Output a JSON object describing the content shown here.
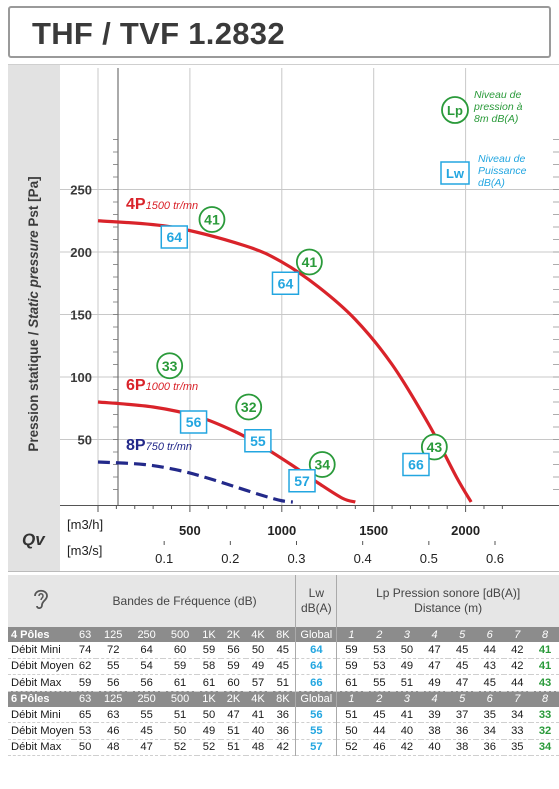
{
  "title": "THF / TVF 1.2832",
  "chart_data": {
    "type": "line",
    "ylabel_normal": "Pression statique / ",
    "ylabel_italic": "Static pressure",
    "ylabel_tail": " Pst [Pa]",
    "y_ticks": [
      "250",
      "200",
      "150",
      "100",
      "50"
    ],
    "x_ticks_m3h": [
      "500",
      "1000",
      "1500",
      "2000"
    ],
    "x_ticks_m3s": [
      "0.1",
      "0.2",
      "0.3",
      "0.4",
      "0.5",
      "0.6"
    ],
    "x_unit_m3h": "[m3/h]",
    "x_unit_m3s": "[m3/s]",
    "x_label": "Qv",
    "xlim": [
      0,
      2250
    ],
    "ylim": [
      0,
      295
    ],
    "series": [
      {
        "name": "4P",
        "speed": "1500 tr/mn",
        "color": "#d9232a",
        "dashed": false,
        "x": [
          0,
          400,
          800,
          1000,
          1200,
          1400,
          1600,
          1800,
          1950,
          2030
        ],
        "y": [
          225,
          220,
          205,
          192,
          172,
          146,
          110,
          62,
          20,
          0
        ]
      },
      {
        "name": "6P",
        "speed": "1000 tr/mn",
        "color": "#d9232a",
        "dashed": false,
        "x": [
          0,
          300,
          550,
          750,
          900,
          1050,
          1200,
          1330,
          1400
        ],
        "y": [
          80,
          76,
          68,
          56,
          44,
          30,
          15,
          3,
          0
        ]
      },
      {
        "name": "8P",
        "speed": "750 tr/mn",
        "color": "#23298a",
        "dashed": true,
        "x": [
          0,
          250,
          450,
          600,
          750,
          900,
          1000,
          1060
        ],
        "y": [
          32,
          30,
          25,
          19,
          12,
          5,
          1,
          0
        ]
      }
    ],
    "lp_labels": [
      {
        "value": "41",
        "x": 620,
        "y": 226
      },
      {
        "value": "41",
        "x": 1150,
        "y": 192
      },
      {
        "value": "33",
        "x": 390,
        "y": 109
      },
      {
        "value": "32",
        "x": 820,
        "y": 76
      },
      {
        "value": "43",
        "x": 1830,
        "y": 44
      },
      {
        "value": "34",
        "x": 1220,
        "y": 30
      }
    ],
    "lw_labels": [
      {
        "value": "64",
        "x": 415,
        "y": 212
      },
      {
        "value": "64",
        "x": 1020,
        "y": 175
      },
      {
        "value": "56",
        "x": 520,
        "y": 64
      },
      {
        "value": "55",
        "x": 870,
        "y": 49
      },
      {
        "value": "66",
        "x": 1730,
        "y": 30
      },
      {
        "value": "57",
        "x": 1110,
        "y": 17
      }
    ],
    "legend": {
      "lp_symbol": "Lp",
      "lp_text": [
        "Niveau de",
        "pression à",
        "8m dB(A)"
      ],
      "lw_symbol": "Lw",
      "lw_text": [
        "Niveau de",
        "Puissance",
        "dB(A)"
      ]
    }
  },
  "table": {
    "header": {
      "bandes": "Bandes de Fréquence (dB)",
      "lw": [
        "Lw",
        "dB(A)"
      ],
      "lp": [
        "Lp Pression sonore [dB(A)]",
        "Distance (m)"
      ]
    },
    "sections": [
      {
        "label": "4 Pôles",
        "cols": [
          "63",
          "125",
          "250",
          "500",
          "1K",
          "2K",
          "4K",
          "8K",
          "Global",
          "1",
          "2",
          "3",
          "4",
          "5",
          "6",
          "7",
          "8"
        ],
        "rows": [
          {
            "label": "Débit Mini",
            "bands": [
              "74",
              "72",
              "64",
              "60",
              "59",
              "56",
              "50",
              "45"
            ],
            "global": "64",
            "lp": [
              "59",
              "53",
              "50",
              "47",
              "45",
              "44",
              "42"
            ],
            "lp8": "41"
          },
          {
            "label": "Débit Moyen",
            "bands": [
              "62",
              "55",
              "54",
              "59",
              "58",
              "59",
              "49",
              "45"
            ],
            "global": "64",
            "lp": [
              "59",
              "53",
              "49",
              "47",
              "45",
              "43",
              "42"
            ],
            "lp8": "41"
          },
          {
            "label": "Débit Max",
            "bands": [
              "59",
              "56",
              "56",
              "61",
              "61",
              "60",
              "57",
              "51"
            ],
            "global": "66",
            "lp": [
              "61",
              "55",
              "51",
              "49",
              "47",
              "45",
              "44"
            ],
            "lp8": "43"
          }
        ]
      },
      {
        "label": "6 Pôles",
        "cols": [
          "63",
          "125",
          "250",
          "500",
          "1K",
          "2K",
          "4K",
          "8K",
          "Global",
          "1",
          "2",
          "3",
          "4",
          "5",
          "6",
          "7",
          "8"
        ],
        "rows": [
          {
            "label": "Débit Mini",
            "bands": [
              "65",
              "63",
              "55",
              "51",
              "50",
              "47",
              "41",
              "36"
            ],
            "global": "56",
            "lp": [
              "51",
              "45",
              "41",
              "39",
              "37",
              "35",
              "34"
            ],
            "lp8": "33"
          },
          {
            "label": "Débit Moyen",
            "bands": [
              "53",
              "46",
              "45",
              "50",
              "49",
              "51",
              "40",
              "36"
            ],
            "global": "55",
            "lp": [
              "50",
              "44",
              "40",
              "38",
              "36",
              "34",
              "33"
            ],
            "lp8": "32"
          },
          {
            "label": "Débit Max",
            "bands": [
              "50",
              "48",
              "47",
              "52",
              "52",
              "51",
              "48",
              "42"
            ],
            "global": "57",
            "lp": [
              "52",
              "46",
              "42",
              "40",
              "38",
              "36",
              "35"
            ],
            "lp8": "34"
          }
        ]
      }
    ]
  }
}
